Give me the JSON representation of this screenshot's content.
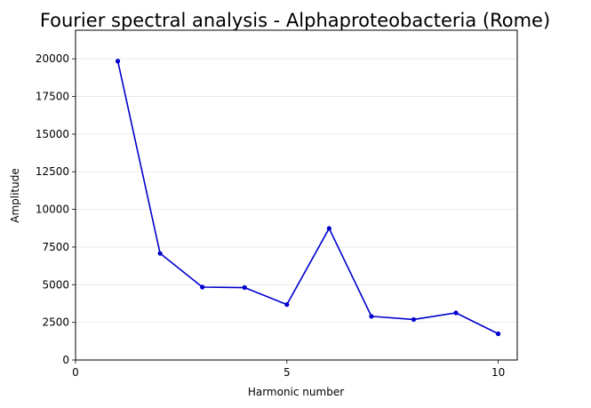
{
  "chart_data": {
    "type": "line",
    "title": "Fourier spectral analysis - Alphaproteobacteria (Rome)",
    "xlabel": "Harmonic number",
    "ylabel": "Amplitude",
    "xlim": [
      0,
      10.45
    ],
    "ylim": [
      0,
      21900
    ],
    "xticks": [
      0,
      5,
      10
    ],
    "xtick_labels": [
      "0",
      "5",
      "10"
    ],
    "yticks": [
      0,
      2500,
      5000,
      7500,
      10000,
      12500,
      15000,
      17500,
      20000
    ],
    "ytick_labels": [
      "0",
      "2500",
      "5000",
      "7500",
      "10000",
      "12500",
      "15000",
      "17500",
      "20000"
    ],
    "grid": "horizontal",
    "color": "#0000cc",
    "series": [
      {
        "x": [
          1,
          2,
          3,
          4,
          5,
          6,
          7,
          8,
          9,
          10
        ],
        "values": [
          19850,
          7080,
          4840,
          4810,
          3680,
          8740,
          2900,
          2690,
          3130,
          1740
        ]
      }
    ]
  }
}
